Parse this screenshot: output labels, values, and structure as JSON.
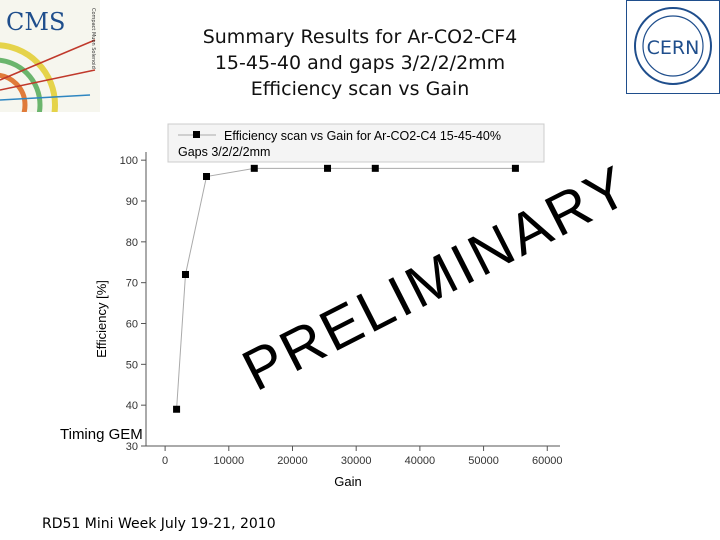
{
  "slide": {
    "title_lines": [
      "Summary Results for Ar-CO2-CF4",
      "15-45-40 and gaps 3/2/2/2mm",
      "Efficiency scan vs Gain"
    ],
    "footer": "RD51 Mini Week July 19-21, 2010",
    "side_label": "Timing GEM",
    "watermark": "PRELIMINARY",
    "logos": {
      "left_text": "CMS",
      "right_text": "CERN",
      "cern_color": "#1f4e8c"
    }
  },
  "chart_data": {
    "type": "scatter",
    "legend_lines": [
      "Efficiency scan vs Gain for Ar-CO2-C4 15-45-40%",
      "Gaps 3/2/2/2mm"
    ],
    "legend_placement": "top",
    "xlabel": "Gain",
    "ylabel": "Efficiency [%]",
    "xlim": [
      -3000,
      62000
    ],
    "ylim": [
      30,
      102
    ],
    "xticks": [
      0,
      10000,
      20000,
      30000,
      40000,
      50000,
      60000
    ],
    "yticks": [
      30,
      40,
      50,
      60,
      70,
      80,
      90,
      100
    ],
    "grid": false,
    "series": [
      {
        "x": [
          1800,
          3200,
          6500,
          14000,
          25500,
          33000,
          55000
        ],
        "y": [
          39,
          72,
          96,
          98,
          98,
          98,
          98
        ],
        "color": "#000000",
        "line_color": "#aaaaaa",
        "marker": "square"
      }
    ]
  }
}
